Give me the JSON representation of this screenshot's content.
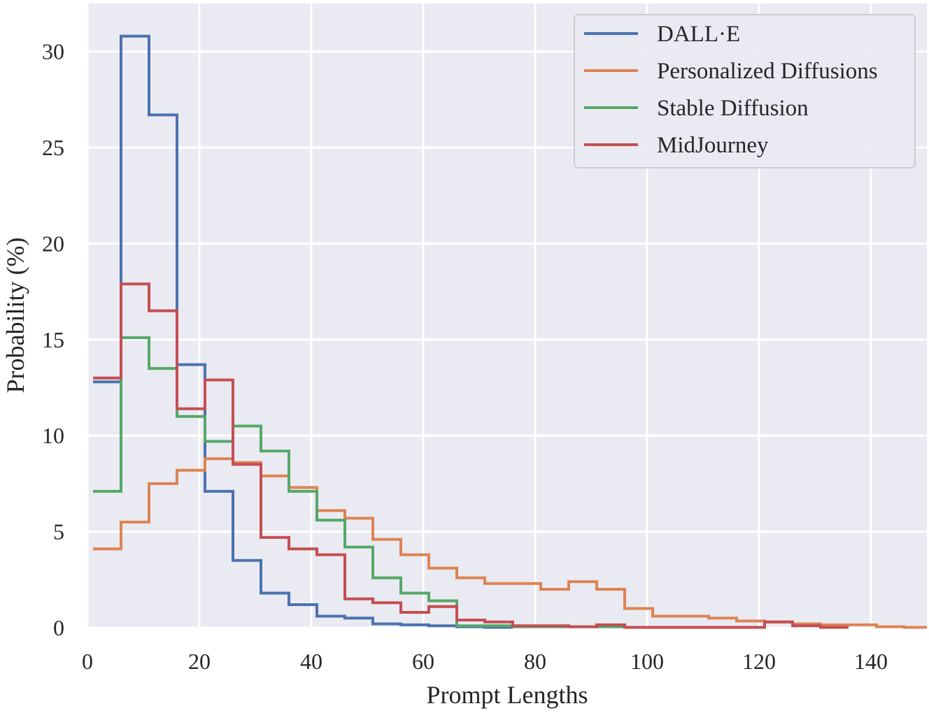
{
  "chart_data": {
    "type": "step-histogram",
    "title": "",
    "xlabel": "Prompt Lengths",
    "ylabel": "Probability (%)",
    "xlim": [
      0,
      150
    ],
    "ylim": [
      0,
      32.5
    ],
    "xticks": [
      0,
      20,
      40,
      60,
      80,
      100,
      120,
      140
    ],
    "yticks": [
      0,
      5,
      10,
      15,
      20,
      25,
      30
    ],
    "grid": true,
    "legend_position": "top-right",
    "bin_edges": [
      1,
      6,
      11,
      16,
      21,
      26,
      31,
      36,
      41,
      46,
      51,
      56,
      61,
      66,
      71,
      76,
      81,
      86,
      91,
      96,
      101,
      106,
      111,
      116,
      121,
      126,
      131,
      136,
      141,
      146,
      151
    ],
    "series": [
      {
        "name": "DALL·E",
        "color": "#4c72b0",
        "values": [
          12.8,
          30.8,
          26.7,
          13.7,
          7.1,
          3.5,
          1.8,
          1.2,
          0.6,
          0.5,
          0.2,
          0.15,
          0.1,
          0.05,
          0.02
        ]
      },
      {
        "name": "Personalized Diffusions",
        "color": "#dd8452",
        "values": [
          4.1,
          5.5,
          7.5,
          8.2,
          8.8,
          8.6,
          7.9,
          7.3,
          6.1,
          5.7,
          4.6,
          3.8,
          3.1,
          2.6,
          2.3,
          2.3,
          2.0,
          2.4,
          2.0,
          1.0,
          0.6,
          0.6,
          0.5,
          0.35,
          0.3,
          0.2,
          0.15,
          0.15,
          0.05,
          0.02
        ]
      },
      {
        "name": "Stable Diffusion",
        "color": "#55a868",
        "values": [
          7.1,
          15.1,
          13.5,
          11.0,
          9.7,
          10.5,
          9.2,
          7.1,
          5.6,
          4.2,
          2.6,
          1.8,
          1.4,
          0.1,
          0.1,
          0.05,
          0.05,
          0.05,
          0.05
        ]
      },
      {
        "name": "MidJourney",
        "color": "#c44e52",
        "values": [
          13.0,
          17.9,
          16.5,
          11.4,
          12.9,
          8.5,
          4.7,
          4.1,
          3.8,
          1.5,
          1.3,
          0.8,
          1.1,
          0.4,
          0.3,
          0.1,
          0.1,
          0.05,
          0.15,
          0.02,
          0.02,
          0.02,
          0.02,
          0.02,
          0.3,
          0.1,
          0.02
        ]
      }
    ]
  }
}
